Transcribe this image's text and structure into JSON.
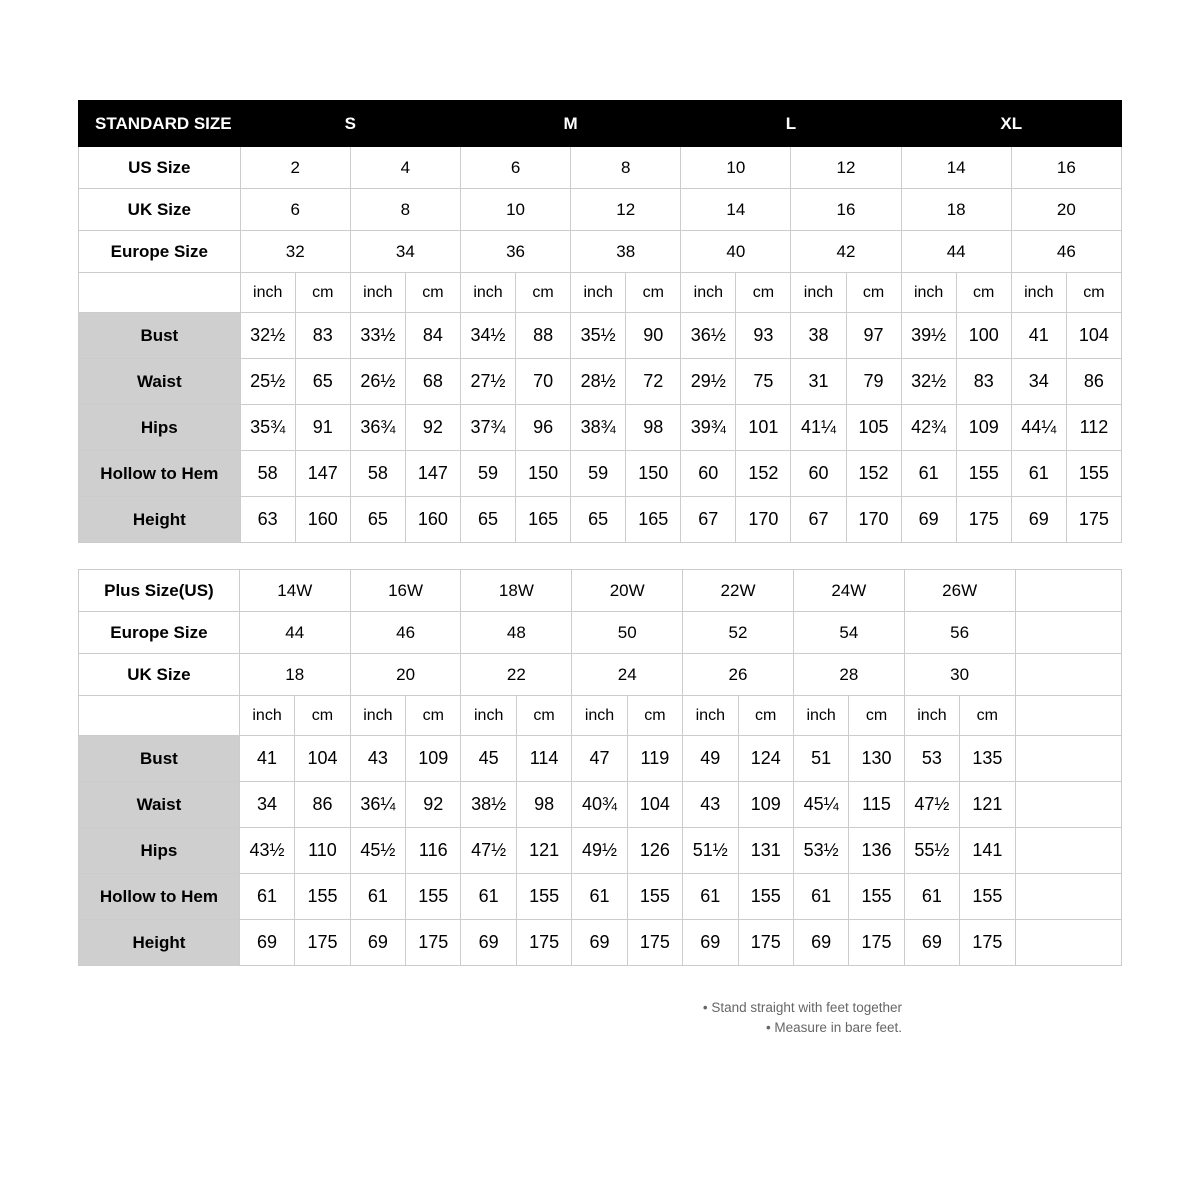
{
  "standard": {
    "title": "STANDARD SIZE",
    "size_headers": [
      "S",
      "M",
      "L",
      "XL"
    ],
    "meta_rows": [
      {
        "label": "US Size",
        "values": [
          "2",
          "4",
          "6",
          "8",
          "10",
          "12",
          "14",
          "16"
        ]
      },
      {
        "label": "UK Size",
        "values": [
          "6",
          "8",
          "10",
          "12",
          "14",
          "16",
          "18",
          "20"
        ]
      },
      {
        "label": "Europe Size",
        "values": [
          "32",
          "34",
          "36",
          "38",
          "40",
          "42",
          "44",
          "46"
        ]
      }
    ],
    "unit_labels": [
      "inch",
      "cm",
      "inch",
      "cm",
      "inch",
      "cm",
      "inch",
      "cm",
      "inch",
      "cm",
      "inch",
      "cm",
      "inch",
      "cm",
      "inch",
      "cm"
    ],
    "measure_rows": [
      {
        "label": "Bust",
        "values": [
          "32½",
          "83",
          "33½",
          "84",
          "34½",
          "88",
          "35½",
          "90",
          "36½",
          "93",
          "38",
          "97",
          "39½",
          "100",
          "41",
          "104"
        ]
      },
      {
        "label": "Waist",
        "values": [
          "25½",
          "65",
          "26½",
          "68",
          "27½",
          "70",
          "28½",
          "72",
          "29½",
          "75",
          "31",
          "79",
          "32½",
          "83",
          "34",
          "86"
        ]
      },
      {
        "label": "Hips",
        "values": [
          "35¾",
          "91",
          "36¾",
          "92",
          "37¾",
          "96",
          "38¾",
          "98",
          "39¾",
          "101",
          "41¼",
          "105",
          "42¾",
          "109",
          "44¼",
          "112"
        ]
      },
      {
        "label": "Hollow to Hem",
        "values": [
          "58",
          "147",
          "58",
          "147",
          "59",
          "150",
          "59",
          "150",
          "60",
          "152",
          "60",
          "152",
          "61",
          "155",
          "61",
          "155"
        ]
      },
      {
        "label": "Height",
        "values": [
          "63",
          "160",
          "65",
          "160",
          "65",
          "165",
          "65",
          "165",
          "67",
          "170",
          "67",
          "170",
          "69",
          "175",
          "69",
          "175"
        ]
      }
    ]
  },
  "plus": {
    "meta_rows": [
      {
        "label": "Plus Size(US)",
        "values": [
          "14W",
          "16W",
          "18W",
          "20W",
          "22W",
          "24W",
          "26W"
        ]
      },
      {
        "label": "Europe Size",
        "values": [
          "44",
          "46",
          "48",
          "50",
          "52",
          "54",
          "56"
        ]
      },
      {
        "label": "UK Size",
        "values": [
          "18",
          "20",
          "22",
          "24",
          "26",
          "28",
          "30"
        ]
      }
    ],
    "unit_labels": [
      "inch",
      "cm",
      "inch",
      "cm",
      "inch",
      "cm",
      "inch",
      "cm",
      "inch",
      "cm",
      "inch",
      "cm",
      "inch",
      "cm"
    ],
    "measure_rows": [
      {
        "label": "Bust",
        "values": [
          "41",
          "104",
          "43",
          "109",
          "45",
          "114",
          "47",
          "119",
          "49",
          "124",
          "51",
          "130",
          "53",
          "135"
        ]
      },
      {
        "label": "Waist",
        "values": [
          "34",
          "86",
          "36¼",
          "92",
          "38½",
          "98",
          "40¾",
          "104",
          "43",
          "109",
          "45¼",
          "115",
          "47½",
          "121"
        ]
      },
      {
        "label": "Hips",
        "values": [
          "43½",
          "110",
          "45½",
          "116",
          "47½",
          "121",
          "49½",
          "126",
          "51½",
          "131",
          "53½",
          "136",
          "55½",
          "141"
        ]
      },
      {
        "label": "Hollow to Hem",
        "values": [
          "61",
          "155",
          "61",
          "155",
          "61",
          "155",
          "61",
          "155",
          "61",
          "155",
          "61",
          "155",
          "61",
          "155"
        ]
      },
      {
        "label": "Height",
        "values": [
          "69",
          "175",
          "69",
          "175",
          "69",
          "175",
          "69",
          "175",
          "69",
          "175",
          "69",
          "175",
          "69",
          "175"
        ]
      }
    ]
  },
  "footnotes": [
    "Stand straight with feet together",
    "Measure in bare feet."
  ]
}
